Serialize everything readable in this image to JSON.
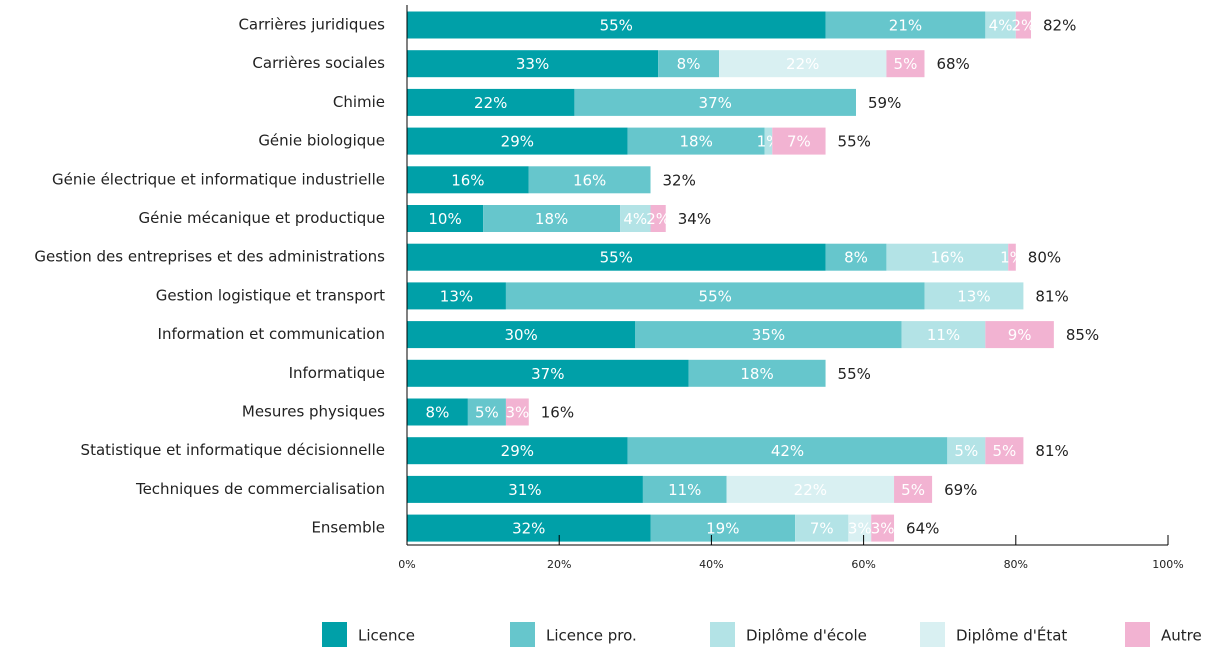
{
  "chart_data": {
    "type": "stacked-barh",
    "categories": [
      "Carrières juridiques",
      "Carrières sociales",
      "Chimie",
      "Génie biologique",
      "Génie électrique et informatique industrielle",
      "Génie mécanique et productique",
      "Gestion des entreprises et des administrations",
      "Gestion logistique et transport",
      "Information et communication",
      "Informatique",
      "Mesures physiques",
      "Statistique et informatique décisionnelle",
      "Techniques de commercialisation",
      "Ensemble"
    ],
    "series": [
      {
        "name": "Licence",
        "color": "#00a0a8",
        "values": [
          55,
          33,
          22,
          29,
          16,
          10,
          55,
          13,
          30,
          37,
          8,
          29,
          31,
          32
        ],
        "value_labels": [
          "55%",
          "33%",
          "22%",
          "29%",
          "16%",
          "10%",
          "55%",
          "13%",
          "30%",
          "37%",
          "8%",
          "29%",
          "31%",
          "32%"
        ]
      },
      {
        "name": "Licence pro.",
        "color": "#66c6cc",
        "values": [
          21,
          8,
          37,
          18,
          16,
          18,
          8,
          55,
          35,
          18,
          5,
          42,
          11,
          19
        ],
        "value_labels": [
          "21%",
          "8%",
          "37%",
          "18%",
          "16%",
          "18%",
          "8%",
          "55%",
          "35%",
          "18%",
          "5%",
          "42%",
          "11%",
          "19%"
        ]
      },
      {
        "name": "Diplôme d'école",
        "color": "#b3e3e6",
        "values": [
          4,
          null,
          null,
          1,
          null,
          4,
          16,
          13,
          11,
          null,
          null,
          5,
          null,
          7
        ],
        "value_labels": [
          "4%",
          null,
          null,
          "1%",
          null,
          "4%",
          "16%",
          "13%",
          "11%",
          null,
          null,
          "5%",
          null,
          "7%"
        ]
      },
      {
        "name": "Diplôme d'État",
        "color": "#d9f0f2",
        "values": [
          null,
          22,
          null,
          null,
          null,
          null,
          null,
          null,
          null,
          null,
          null,
          null,
          22,
          3
        ],
        "value_labels": [
          null,
          "22%",
          null,
          null,
          null,
          null,
          null,
          null,
          null,
          null,
          null,
          null,
          "22%",
          "3%"
        ]
      },
      {
        "name": "Autre",
        "color": "#f2b3d2",
        "values": [
          2,
          5,
          null,
          7,
          null,
          2,
          1,
          null,
          9,
          null,
          3,
          5,
          5,
          3
        ],
        "value_labels": [
          "2%",
          "5%",
          null,
          "7%",
          null,
          "2%",
          "1%",
          null,
          "9%",
          null,
          "3%",
          "5%",
          "5%",
          "3%"
        ]
      }
    ],
    "totals": [
      82,
      68,
      59,
      55,
      32,
      34,
      80,
      81,
      85,
      55,
      16,
      81,
      69,
      64
    ],
    "total_labels": [
      "82%",
      "68%",
      "59%",
      "55%",
      "32%",
      "34%",
      "80%",
      "81%",
      "85%",
      "55%",
      "16%",
      "81%",
      "69%",
      "64%"
    ],
    "xlim": [
      0,
      100
    ],
    "xticks": [
      {
        "value": 0,
        "label": "0%"
      },
      {
        "value": 20,
        "label": "20%"
      },
      {
        "value": 40,
        "label": "40%"
      },
      {
        "value": 60,
        "label": "60%"
      },
      {
        "value": 80,
        "label": "80%"
      },
      {
        "value": 100,
        "label": "100%"
      }
    ],
    "legend": "bottom"
  }
}
